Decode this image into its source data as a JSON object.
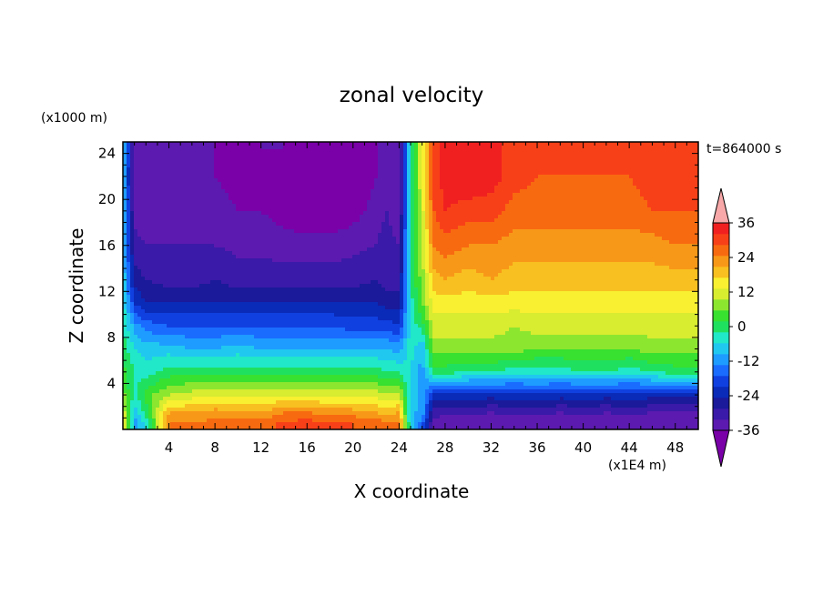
{
  "chart_data": {
    "type": "heatmap",
    "title": "zonal velocity",
    "xlabel": "X coordinate",
    "ylabel": "Z coordinate",
    "x_unit": "(x1E4 m)",
    "y_unit": "(x1000 m)",
    "time_label": "t=864000 s",
    "xlim": [
      0,
      50
    ],
    "ylim": [
      0,
      25
    ],
    "xticks": [
      4,
      8,
      12,
      16,
      20,
      24,
      28,
      32,
      36,
      40,
      44,
      48
    ],
    "yticks": [
      4,
      8,
      12,
      16,
      20,
      24
    ],
    "colorbar": {
      "ticks": [
        36,
        24,
        12,
        0,
        -12,
        -24,
        -36
      ],
      "levels": [
        -40,
        -36,
        -32,
        -28,
        -24,
        -20,
        -16,
        -12,
        -8,
        -4,
        0,
        4,
        8,
        12,
        16,
        20,
        24,
        28,
        32,
        36,
        40
      ],
      "colors": [
        "#7a00a8",
        "#5c1ab0",
        "#3a1aa8",
        "#1a1a9a",
        "#0a2ab8",
        "#1040e0",
        "#1a6cff",
        "#1e9cff",
        "#20c8f0",
        "#20e8c8",
        "#20e060",
        "#38e030",
        "#8ce630",
        "#d8ec30",
        "#f8f030",
        "#f8c020",
        "#f89818",
        "#f86a10",
        "#f84018",
        "#f02020",
        "#f8a8a8"
      ],
      "extend": "both"
    },
    "description_grid": {
      "x": [
        0,
        1,
        2,
        4,
        6,
        8,
        10,
        12,
        14,
        16,
        18,
        20,
        22,
        23,
        24,
        25,
        26,
        27,
        28,
        30,
        32,
        34,
        36,
        38,
        40,
        42,
        44,
        46,
        48,
        50
      ],
      "z": [
        0.5,
        1.5,
        3,
        5,
        7,
        9,
        11,
        13,
        16,
        19,
        22,
        24.5
      ],
      "u": [
        [
          20,
          -10,
          -4,
          28,
          28,
          30,
          32,
          30,
          33,
          34,
          33,
          32,
          30,
          30,
          28,
          -4,
          -16,
          -34,
          -36,
          -36,
          -36,
          -36,
          -36,
          -36,
          -36,
          -36,
          -36,
          -36,
          -36,
          -36
        ],
        [
          16,
          -6,
          2,
          24,
          24,
          26,
          24,
          24,
          28,
          28,
          26,
          26,
          24,
          22,
          24,
          -8,
          -8,
          -30,
          -30,
          -30,
          -32,
          -30,
          -30,
          -32,
          -30,
          -32,
          -30,
          -32,
          -32,
          -32
        ],
        [
          10,
          -2,
          6,
          12,
          14,
          14,
          14,
          14,
          16,
          16,
          14,
          14,
          14,
          12,
          14,
          -6,
          -10,
          -20,
          -22,
          -22,
          -22,
          -22,
          -20,
          -22,
          -22,
          -22,
          -22,
          -22,
          -22,
          -22
        ],
        [
          6,
          0,
          -2,
          2,
          2,
          2,
          2,
          2,
          2,
          2,
          2,
          2,
          2,
          0,
          0,
          -4,
          -10,
          2,
          2,
          0,
          0,
          -2,
          -2,
          -2,
          0,
          0,
          -2,
          0,
          2,
          2
        ],
        [
          2,
          -4,
          -6,
          -6,
          -8,
          -8,
          -6,
          -8,
          -8,
          -8,
          -8,
          -8,
          -8,
          -8,
          -10,
          -2,
          -8,
          10,
          10,
          10,
          10,
          10,
          8,
          8,
          8,
          8,
          8,
          10,
          10,
          10
        ],
        [
          0,
          -10,
          -14,
          -16,
          -16,
          -16,
          -16,
          -16,
          -16,
          -16,
          -16,
          -18,
          -18,
          -18,
          -20,
          -2,
          2,
          14,
          14,
          14,
          14,
          12,
          14,
          14,
          14,
          14,
          14,
          14,
          14,
          14
        ],
        [
          -2,
          -20,
          -24,
          -24,
          -24,
          -24,
          -24,
          -24,
          -24,
          -24,
          -24,
          -24,
          -24,
          -26,
          -26,
          -2,
          8,
          18,
          18,
          18,
          18,
          18,
          18,
          18,
          18,
          18,
          18,
          18,
          18,
          18
        ],
        [
          -4,
          -26,
          -28,
          -30,
          -30,
          -28,
          -30,
          -30,
          -30,
          -30,
          -30,
          -30,
          -28,
          -30,
          -30,
          0,
          10,
          22,
          24,
          22,
          24,
          22,
          22,
          22,
          22,
          22,
          22,
          22,
          22,
          22
        ],
        [
          -6,
          -30,
          -32,
          -32,
          -32,
          -32,
          -33,
          -33,
          -34,
          -34,
          -34,
          -33,
          -32,
          -30,
          -32,
          0,
          12,
          28,
          30,
          28,
          28,
          26,
          26,
          26,
          26,
          26,
          26,
          26,
          28,
          28
        ],
        [
          -6,
          -34,
          -36,
          -36,
          -34,
          -34,
          -36,
          -36,
          -38,
          -40,
          -40,
          -38,
          -34,
          -32,
          -36,
          0,
          14,
          32,
          36,
          34,
          34,
          30,
          30,
          30,
          30,
          30,
          30,
          32,
          32,
          32
        ],
        [
          -6,
          -36,
          -36,
          -36,
          -36,
          -36,
          -38,
          -38,
          -36,
          -38,
          -40,
          -40,
          -36,
          -34,
          -36,
          0,
          16,
          34,
          38,
          40,
          38,
          34,
          32,
          32,
          32,
          32,
          32,
          34,
          34,
          34
        ],
        [
          -6,
          -34,
          -36,
          -36,
          -36,
          -36,
          -38,
          -36,
          -36,
          -38,
          -40,
          -40,
          -36,
          -34,
          -36,
          0,
          16,
          34,
          38,
          40,
          38,
          34,
          32,
          32,
          32,
          32,
          32,
          34,
          34,
          34
        ]
      ]
    }
  }
}
